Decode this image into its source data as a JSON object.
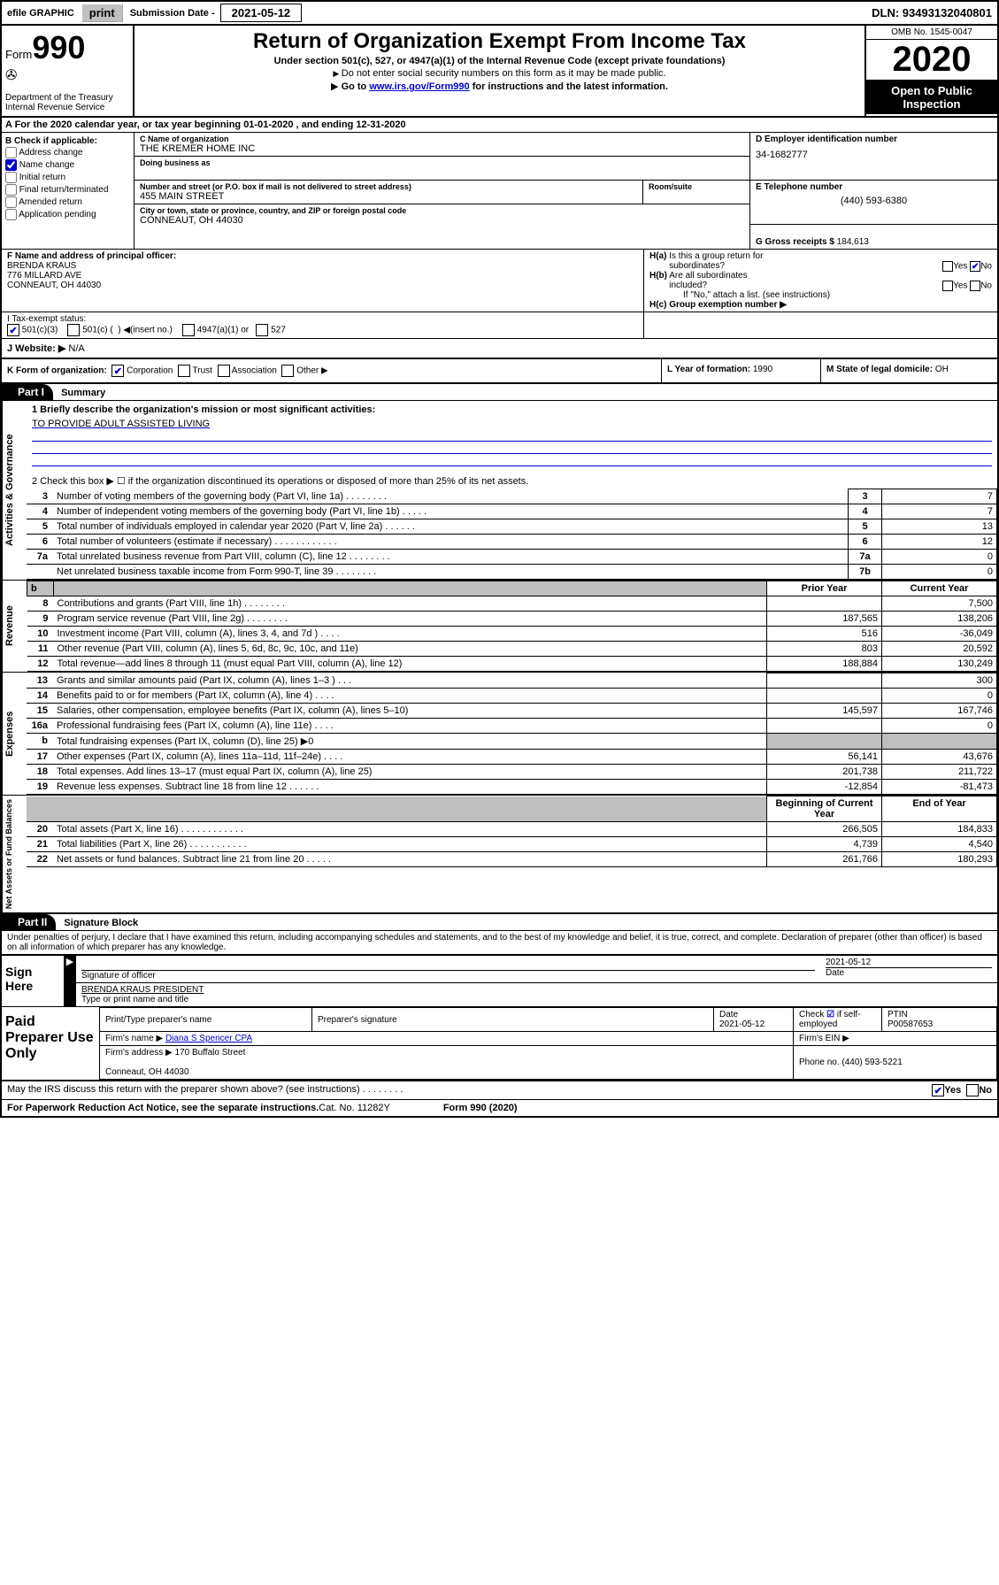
{
  "topbar": {
    "efile": "efile GRAPHIC",
    "print": "print",
    "sub_label": "Submission Date - ",
    "sub_date": "2021-05-12",
    "dln": "DLN: 93493132040801"
  },
  "header": {
    "form_word": "Form",
    "form_num": "990",
    "dept": "Department of the Treasury\nInternal Revenue Service",
    "title": "Return of Organization Exempt From Income Tax",
    "sub": "Under section 501(c), 527, or 4947(a)(1) of the Internal Revenue Code (except private foundations)",
    "note1": "Do not enter social security numbers on this form as it may be made public.",
    "note2_pre": "Go to ",
    "note2_link": "www.irs.gov/Form990",
    "note2_post": " for instructions and the latest information.",
    "omb": "OMB No. 1545-0047",
    "year": "2020",
    "open": "Open to Public Inspection"
  },
  "rowA": "A For the 2020 calendar year, or tax year beginning 01-01-2020     , and ending 12-31-2020",
  "boxB": {
    "label": "B Check if applicable:",
    "items": [
      {
        "t": "Address change",
        "c": false
      },
      {
        "t": "Name change",
        "c": true
      },
      {
        "t": "Initial return",
        "c": false
      },
      {
        "t": "Final return/terminated",
        "c": false
      },
      {
        "t": "Amended return",
        "c": false
      },
      {
        "t": "Application pending",
        "c": false
      }
    ]
  },
  "boxC": {
    "name_lab": "C Name of organization",
    "name": "THE KREMER HOME INC",
    "dba_lab": "Doing business as",
    "addr_lab": "Number and street (or P.O. box if mail is not delivered to street address)",
    "addr": "455 MAIN STREET",
    "room_lab": "Room/suite",
    "city_lab": "City or town, state or province, country, and ZIP or foreign postal code",
    "city": "CONNEAUT, OH  44030"
  },
  "boxD": {
    "lab": "D Employer identification number",
    "val": "34-1682777"
  },
  "boxE": {
    "lab": "E Telephone number",
    "val": "(440) 593-6380"
  },
  "boxG": {
    "lab": "G Gross receipts $ ",
    "val": "184,613"
  },
  "boxF": {
    "lab": "F  Name and address of principal officer:",
    "lines": "BRENDA KRAUS\n776 MILLARD AVE\nCONNEAUT, OH  44030"
  },
  "boxH": {
    "a": "H(a)  Is this a group return for subordinates?",
    "a_yes": false,
    "a_no": true,
    "b": "H(b)  Are all subordinates included?",
    "b_note": "If \"No,\" attach a list. (see instructions)",
    "c": "H(c)  Group exemption number ▶"
  },
  "rowI": {
    "lab": "I   Tax-exempt status:",
    "c3_checked": true,
    "opts": "501(c)(3)       501(c) (   ) ◀(insert no.)       4947(a)(1) or       527"
  },
  "rowJ": {
    "lab": "J   Website: ▶",
    "val": "  N/A"
  },
  "rowK": {
    "lab": "K Form of organization:",
    "corp_checked": true,
    "opts": "Corporation       Trust       Association       Other ▶"
  },
  "rowL": {
    "lab": "L Year of formation: ",
    "val": "1990"
  },
  "rowM": {
    "lab": "M State of legal domicile: ",
    "val": "OH"
  },
  "part1": {
    "tag": "Part I",
    "title": "Summary",
    "q1": "1  Briefly describe the organization's mission or most significant activities:",
    "mission": "TO PROVIDE ADULT ASSISTED LIVING",
    "q2": "2   Check this box ▶ ☐ if the organization discontinued its operations or disposed of more than 25% of its net assets.",
    "rows_gov": [
      {
        "n": "3",
        "t": "Number of voting members of the governing body (Part VI, line 1a)   .    .    .    .    .    .    .    .",
        "b": "3",
        "v": "7"
      },
      {
        "n": "4",
        "t": "Number of independent voting members of the governing body (Part VI, line 1b)   .    .    .    .    .",
        "b": "4",
        "v": "7"
      },
      {
        "n": "5",
        "t": "Total number of individuals employed in calendar year 2020 (Part V, line 2a)   .    .    .    .    .    .",
        "b": "5",
        "v": "13"
      },
      {
        "n": "6",
        "t": "Total number of volunteers (estimate if necessary)   .    .    .    .    .    .    .    .    .    .    .    .",
        "b": "6",
        "v": "12"
      },
      {
        "n": "7a",
        "t": "Total unrelated business revenue from Part VIII, column (C), line 12   .    .    .    .    .    .    .    .",
        "b": "7a",
        "v": "0"
      },
      {
        "n": "  ",
        "t": "  Net unrelated business taxable income from Form 990-T, line 39   .    .    .    .    .    .    .    .",
        "b": "7b",
        "v": "0"
      }
    ],
    "prior_hdr": "Prior Year",
    "curr_hdr": "Current Year",
    "rows_rev": [
      {
        "n": "8",
        "t": "Contributions and grants (Part VIII, line 1h)   .    .    .    .    .    .    .    .",
        "p": "",
        "c": "7,500"
      },
      {
        "n": "9",
        "t": "Program service revenue (Part VIII, line 2g)   .    .    .    .    .    .    .    .",
        "p": "187,565",
        "c": "138,206"
      },
      {
        "n": "10",
        "t": "Investment income (Part VIII, column (A), lines 3, 4, and 7d )   .    .    .    .",
        "p": "516",
        "c": "-36,049"
      },
      {
        "n": "11",
        "t": "Other revenue (Part VIII, column (A), lines 5, 6d, 8c, 9c, 10c, and 11e)",
        "p": "803",
        "c": "20,592"
      },
      {
        "n": "12",
        "t": "Total revenue—add lines 8 through 11 (must equal Part VIII, column (A), line 12)",
        "p": "188,884",
        "c": "130,249"
      }
    ],
    "rows_exp": [
      {
        "n": "13",
        "t": "Grants and similar amounts paid (Part IX, column (A), lines 1–3 )   .    .    .",
        "p": "",
        "c": "300"
      },
      {
        "n": "14",
        "t": "Benefits paid to or for members (Part IX, column (A), line 4)   .    .    .    .",
        "p": "",
        "c": "0"
      },
      {
        "n": "15",
        "t": "Salaries, other compensation, employee benefits (Part IX, column (A), lines 5–10)",
        "p": "145,597",
        "c": "167,746"
      },
      {
        "n": "16a",
        "t": "Professional fundraising fees (Part IX, column (A), line 11e)   .    .    .    .",
        "p": "",
        "c": "0"
      },
      {
        "n": "b",
        "t": "  Total fundraising expenses (Part IX, column (D), line 25) ▶0",
        "p": "GRAY",
        "c": "GRAY"
      },
      {
        "n": "17",
        "t": "Other expenses (Part IX, column (A), lines 11a–11d, 11f–24e)   .    .    .    .",
        "p": "56,141",
        "c": "43,676"
      },
      {
        "n": "18",
        "t": "Total expenses. Add lines 13–17 (must equal Part IX, column (A), line 25)",
        "p": "201,738",
        "c": "211,722"
      },
      {
        "n": "19",
        "t": "Revenue less expenses. Subtract line 18 from line 12   .    .    .    .    .    .",
        "p": "-12,854",
        "c": "-81,473"
      }
    ],
    "beg_hdr": "Beginning of Current Year",
    "end_hdr": "End of Year",
    "rows_net": [
      {
        "n": "20",
        "t": "Total assets (Part X, line 16)   .    .    .    .    .    .    .    .    .    .    .    .",
        "p": "266,505",
        "c": "184,833"
      },
      {
        "n": "21",
        "t": "Total liabilities (Part X, line 26)   .    .    .    .    .    .    .    .    .    .    .",
        "p": "4,739",
        "c": "4,540"
      },
      {
        "n": "22",
        "t": "Net assets or fund balances. Subtract line 21 from line 20   .    .    .    .    .",
        "p": "261,766",
        "c": "180,293"
      }
    ],
    "side_gov": "Activities & Governance",
    "side_rev": "Revenue",
    "side_exp": "Expenses",
    "side_net": "Net Assets or Fund Balances"
  },
  "part2": {
    "tag": "Part II",
    "title": "Signature Block",
    "decl": "Under penalties of perjury, I declare that I have examined this return, including accompanying schedules and statements, and to the best of my knowledge and belief, it is true, correct, and complete. Declaration of preparer (other than officer) is based on all information of which preparer has any knowledge."
  },
  "sign": {
    "here": "Sign Here",
    "sig_lab": "Signature of officer",
    "date": "2021-05-12",
    "date_lab": "Date",
    "name": "BRENDA KRAUS PRESIDENT",
    "name_lab": "Type or print name and title"
  },
  "prep": {
    "here": "Paid Preparer Use Only",
    "h1": "Print/Type preparer's name",
    "h2": "Preparer's signature",
    "h3": "Date",
    "date": "2021-05-12",
    "h4": "Check ☑ if self-employed",
    "h5": "PTIN",
    "ptin": "P00587653",
    "firm_lab": "Firm's name     ▶",
    "firm": "Diana S Spencer CPA",
    "ein_lab": "Firm's EIN ▶",
    "addr_lab": "Firm's address ▶",
    "addr": "170 Buffalo Street\n\nConneaut, OH  44030",
    "phone_lab": "Phone no. ",
    "phone": "(440) 593-5221"
  },
  "footer": {
    "discuss": "May the IRS discuss this return with the preparer shown above? (see instructions)   .    .    .    .    .    .    .    .",
    "yes_checked": true,
    "pra": "For Paperwork Reduction Act Notice, see the separate instructions.",
    "cat": "Cat. No. 11282Y",
    "form": "Form 990 (2020)"
  }
}
